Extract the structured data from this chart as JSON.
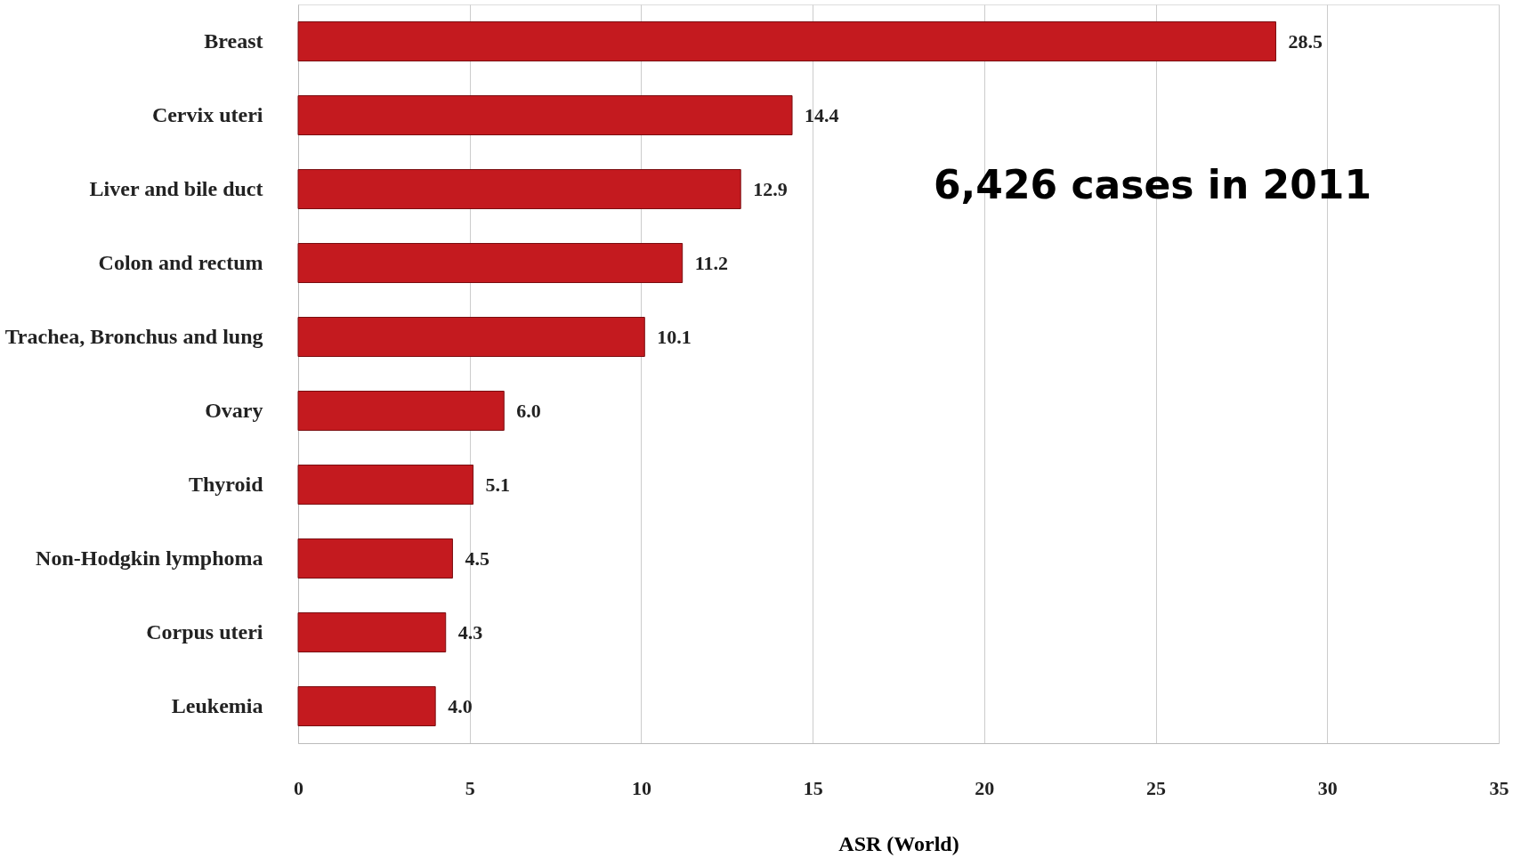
{
  "chart_data": {
    "type": "bar",
    "orientation": "horizontal",
    "xlabel": "ASR (World)",
    "categories": [
      "Breast",
      "Cervix uteri",
      "Liver and bile duct",
      "Colon and rectum",
      "Trachea, Bronchus and lung",
      "Ovary",
      "Thyroid",
      "Non-Hodgkin lymphoma",
      "Corpus uteri",
      "Leukemia"
    ],
    "values": [
      28.5,
      14.4,
      12.9,
      11.2,
      10.1,
      6.0,
      5.1,
      4.5,
      4.3,
      4.0
    ],
    "value_labels": [
      "28.5",
      "14.4",
      "12.9",
      "11.2",
      "10.1",
      "6.0",
      "5.1",
      "4.5",
      "4.3",
      "4.0"
    ],
    "color": "#c41a1f",
    "xlim": [
      0,
      35
    ],
    "xticks": [
      0,
      5,
      10,
      15,
      20,
      25,
      30,
      35
    ],
    "grid": "x",
    "annotations": [
      "6,426 cases in 2011"
    ]
  }
}
